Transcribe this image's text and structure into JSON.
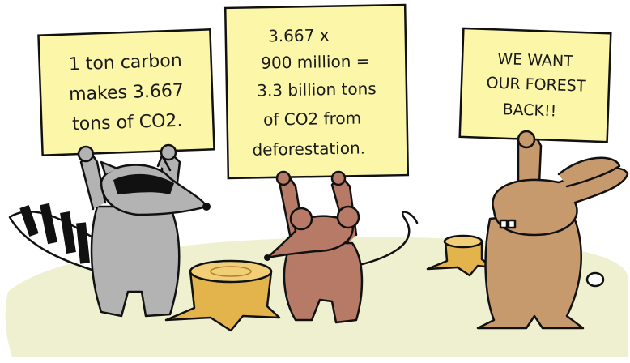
{
  "signs": [
    {
      "lines": [
        "1 ton carbon",
        "makes 3.667",
        "tons of CO2."
      ]
    },
    {
      "lines": [
        "3.667 x",
        "900 million =",
        "3.3 billion tons",
        "of CO2  from",
        "deforestation."
      ]
    },
    {
      "lines": [
        "WE WANT",
        "OUR FOREST",
        "BACK!!"
      ]
    }
  ]
}
